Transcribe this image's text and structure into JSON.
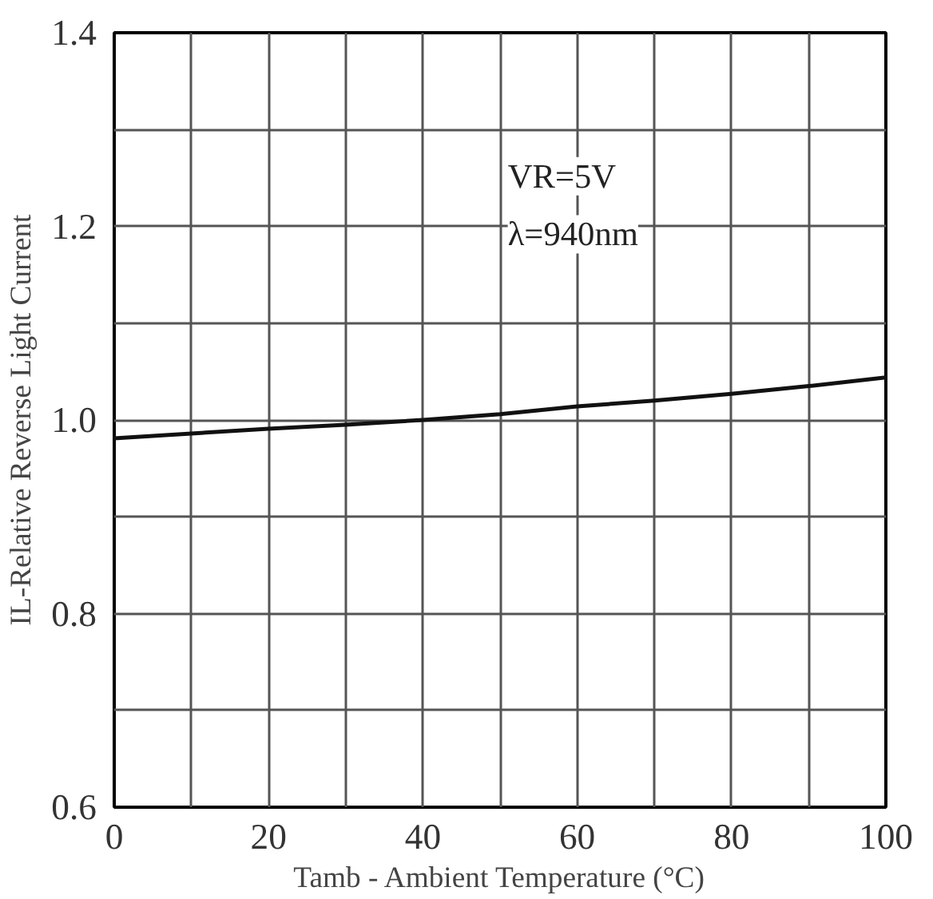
{
  "chart_data": {
    "type": "line",
    "xlabel": "Tamb - Ambient Temperature (°C)",
    "ylabel": "IL-Relative Reverse Light Current",
    "annotations": [
      "VR=5V",
      "λ=940nm"
    ],
    "x": [
      0,
      10,
      20,
      30,
      40,
      50,
      60,
      70,
      80,
      90,
      100
    ],
    "series": [
      {
        "color": "#111111",
        "values": [
          0.981,
          0.986,
          0.991,
          0.995,
          1.0,
          1.006,
          1.014,
          1.02,
          1.027,
          1.035,
          1.044
        ]
      }
    ],
    "xlim": [
      0,
      100
    ],
    "ylim": [
      0.6,
      1.4
    ],
    "xticks": [
      0,
      {
        "value": 10,
        "label": null
      },
      20,
      {
        "value": 30,
        "label": null
      },
      40,
      {
        "value": 50,
        "label": null
      },
      60,
      {
        "value": 70,
        "label": null
      },
      80,
      {
        "value": 90,
        "label": null
      },
      100
    ],
    "yticks": [
      0.6,
      {
        "value": 0.7,
        "label": null
      },
      0.8,
      {
        "value": 0.9,
        "label": null
      },
      {
        "value": 1.0,
        "label": "1.0"
      },
      {
        "value": 1.1,
        "label": null
      },
      1.2,
      {
        "value": 1.3,
        "label": null
      },
      1.4
    ],
    "grid": true,
    "marker": "none",
    "line_style": "solid"
  }
}
